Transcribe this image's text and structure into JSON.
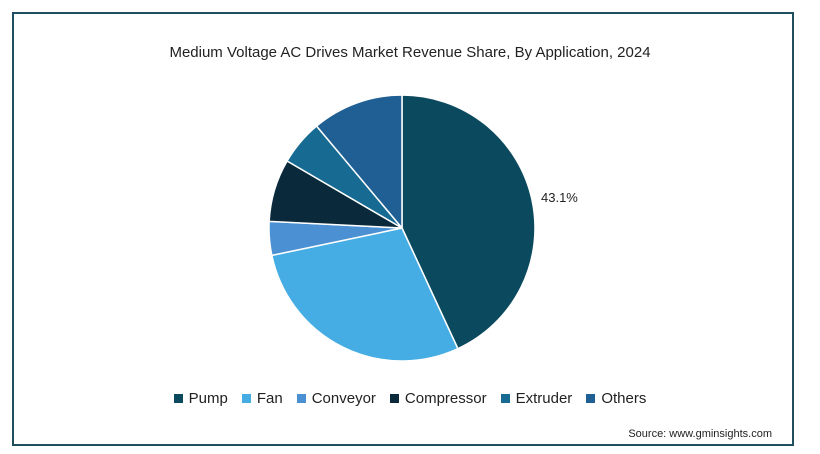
{
  "chart_data": {
    "type": "pie",
    "title": "Medium Voltage AC Drives Market Revenue Share, By Application, 2024",
    "slices": [
      {
        "label": "Pump",
        "value": 43.1,
        "color": "#0b4a5e",
        "data_label": "43.1%"
      },
      {
        "label": "Fan",
        "value": 28.6,
        "color": "#45ade3",
        "data_label": ""
      },
      {
        "label": "Conveyor",
        "value": 4.1,
        "color": "#4a90d2",
        "data_label": ""
      },
      {
        "label": "Compressor",
        "value": 7.6,
        "color": "#0a2a3c",
        "data_label": ""
      },
      {
        "label": "Extruder",
        "value": 5.5,
        "color": "#176b93",
        "data_label": ""
      },
      {
        "label": "Others",
        "value": 11.1,
        "color": "#1f5f93",
        "data_label": ""
      }
    ],
    "legend_position": "bottom"
  },
  "source": "Source: www.gminsights.com"
}
